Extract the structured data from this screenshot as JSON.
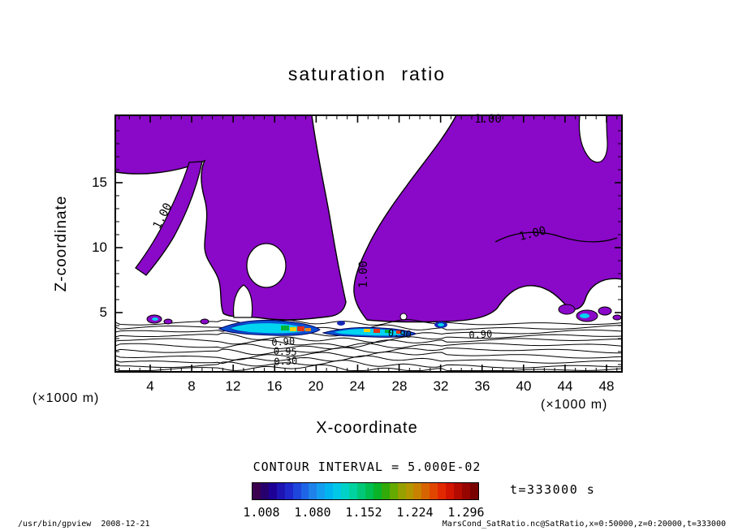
{
  "title": "saturation ratio",
  "chart_data": {
    "type": "heatmap",
    "subtype": "filled-contour",
    "title": "saturation ratio",
    "xlabel": "X-coordinate",
    "ylabel": "Z-coordinate",
    "x_unit_label": "(×1000 m)",
    "y_unit_label": "(×1000 m)",
    "x_ticks": [
      "4",
      "8",
      "12",
      "16",
      "20",
      "24",
      "28",
      "32",
      "36",
      "40",
      "44",
      "48"
    ],
    "y_ticks": [
      "15",
      "10",
      "5"
    ],
    "xlim_x1000m": [
      0,
      50
    ],
    "zlim_x1000m": [
      0,
      20
    ],
    "grid": false,
    "contour_interval_text": "CONTOUR INTERVAL = 5.000E-02",
    "contours_visible": [
      "0.30",
      "0.90",
      "0.95",
      "1.00"
    ],
    "fill_threshold": "1.00",
    "fill_color": "#8a08c8",
    "contour_labels": {
      "left_diag": "1.00",
      "top": "1.00",
      "center_vertical": "1.00",
      "right": "1.00",
      "low1": "0.90",
      "low2": "0.95",
      "low3": "0.30",
      "low4": "0.90",
      "low5": "0.90"
    },
    "time_text": "t=333000 s",
    "colorbar": {
      "labels": [
        "1.008",
        "1.080",
        "1.152",
        "1.224",
        "1.296"
      ],
      "colors": [
        "#3c0050",
        "#28006e",
        "#1e0096",
        "#1e14b4",
        "#1e28cd",
        "#1e46dc",
        "#1e64e6",
        "#1e82ea",
        "#149ef0",
        "#00b4f0",
        "#00c8e6",
        "#00d2c8",
        "#00d2a0",
        "#00c878",
        "#00be50",
        "#0ab428",
        "#32aa0a",
        "#64aa00",
        "#96a000",
        "#b49600",
        "#c88200",
        "#d76400",
        "#e14600",
        "#e12800",
        "#d21400",
        "#b40a00",
        "#960500",
        "#780000"
      ]
    }
  },
  "footer": {
    "left": "/usr/bin/gpview  2008-12-21",
    "right": "MarsCond_SatRatio.nc@SatRatio,x=0:50000,z=0:20000,t=333000"
  }
}
